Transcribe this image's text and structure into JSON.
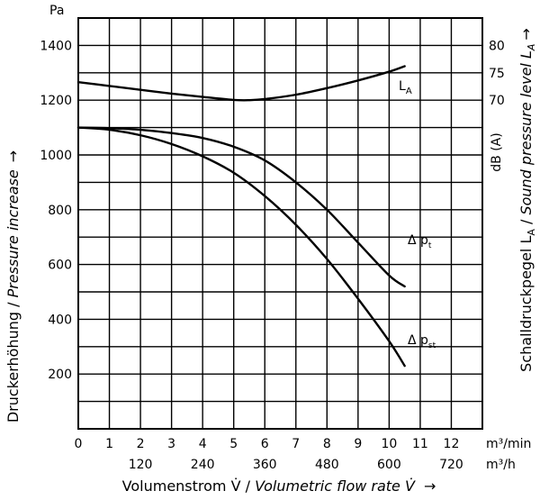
{
  "chart_data": {
    "type": "line",
    "grid": true,
    "x_axis": {
      "unit_top": "m³/min",
      "unit_bottom": "m³/h",
      "range": [
        0,
        13
      ],
      "ticks_m3min": [
        "0",
        "1",
        "2",
        "3",
        "4",
        "5",
        "6",
        "7",
        "8",
        "9",
        "10",
        "11",
        "12"
      ],
      "ticks_m3h": [
        {
          "value": 2,
          "label": "120"
        },
        {
          "value": 4,
          "label": "240"
        },
        {
          "value": 6,
          "label": "360"
        },
        {
          "value": 8,
          "label": "480"
        },
        {
          "value": 10,
          "label": "600"
        },
        {
          "value": 12,
          "label": "720"
        }
      ],
      "label_de": "Volumenstrom V̇",
      "label_sep": " / ",
      "label_en": "Volumetric flow rate V̇",
      "arrow": "→"
    },
    "y_left": {
      "unit": "Pa",
      "range": [
        0,
        1500
      ],
      "ticks": [
        200,
        400,
        600,
        800,
        1000,
        1200,
        1400
      ],
      "label_de": "Druckerhöhung",
      "label_sep": " / ",
      "label_en": "Pressure increase",
      "arrow": "→"
    },
    "y_right": {
      "unit": "dB (A)",
      "mapping": "70 dB(A) at 1200 Pa, 10 dB(A) per 200 Pa",
      "ticks": [
        {
          "value": 70,
          "label": "70"
        },
        {
          "value": 75,
          "label": "75"
        },
        {
          "value": 80,
          "label": "80"
        }
      ],
      "label_de": "Schalldruckpegel L",
      "label_de_sub": "A",
      "label_sep": " / ",
      "label_en": "Sound pressure level L",
      "label_en_sub": "A",
      "arrow": "→"
    },
    "series": [
      {
        "name": "L",
        "subscript": "A",
        "axis": "right",
        "x": [
          0,
          1,
          2,
          3,
          4,
          5,
          5.5,
          6,
          7,
          8,
          9,
          10,
          10.5
        ],
        "y": [
          73.3,
          72.6,
          71.9,
          71.2,
          70.6,
          70.05,
          70.0,
          70.2,
          71.0,
          72.2,
          73.6,
          75.2,
          76.2
        ]
      },
      {
        "name": "Δ p",
        "subscript": "t",
        "axis": "left",
        "x": [
          0,
          1,
          2,
          3,
          4,
          5,
          6,
          7,
          8,
          9,
          10,
          10.5
        ],
        "y": [
          1100,
          1098,
          1092,
          1080,
          1062,
          1030,
          980,
          900,
          800,
          680,
          560,
          520
        ]
      },
      {
        "name": "Δ p",
        "subscript": "st",
        "axis": "left",
        "x": [
          0,
          1,
          2,
          3,
          4,
          5,
          6,
          7,
          8,
          9,
          10,
          10.5
        ],
        "y": [
          1100,
          1092,
          1072,
          1040,
          995,
          935,
          850,
          745,
          620,
          475,
          320,
          230
        ]
      }
    ]
  }
}
